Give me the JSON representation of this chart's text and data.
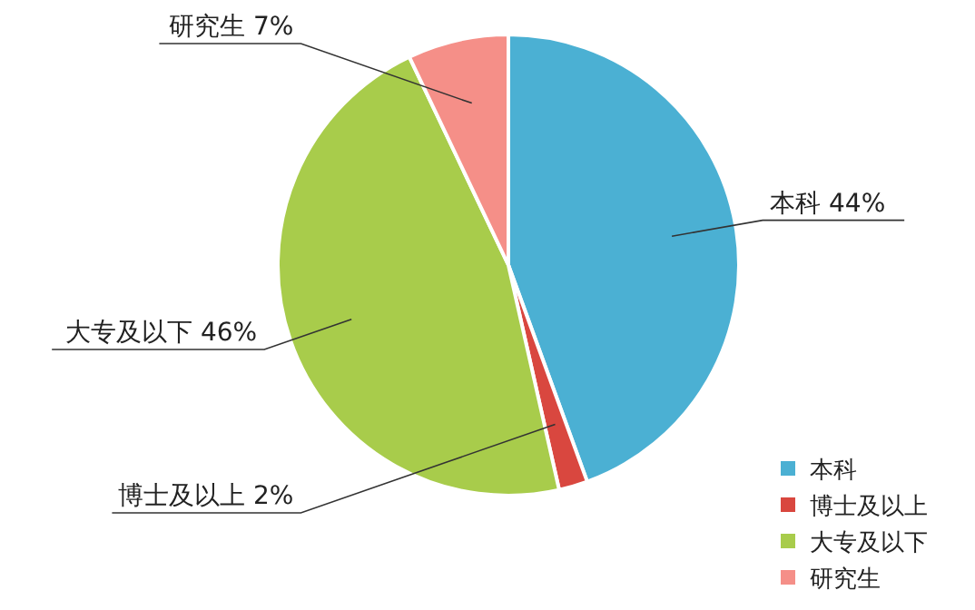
{
  "chart_data": {
    "type": "pie",
    "categories": [
      "本科",
      "博士及以上",
      "大专及以下",
      "研究生"
    ],
    "values": [
      44,
      2,
      46,
      7
    ],
    "colors": [
      "#4bb0d3",
      "#d9473f",
      "#a8cc4b",
      "#f58f88"
    ],
    "value_labels": [
      "44%",
      "2%",
      "46%",
      "7%"
    ],
    "legend": "bottom right"
  }
}
